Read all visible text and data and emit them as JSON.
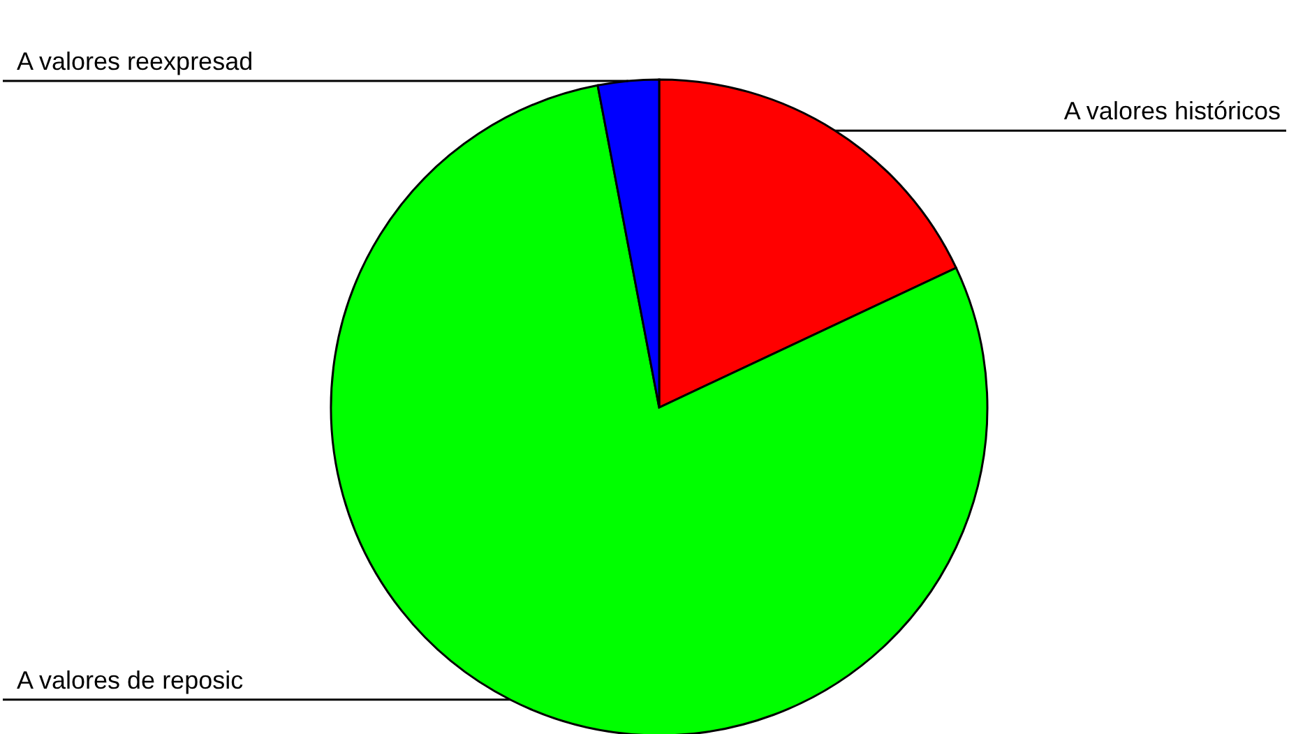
{
  "chart_data": {
    "type": "pie",
    "categories": [
      "A valores históricos",
      "A valores de reposic",
      "A valores reexpresad"
    ],
    "values": [
      18,
      79,
      3
    ],
    "colors": [
      "#ff0000",
      "#00ff00",
      "#0000ff"
    ]
  }
}
